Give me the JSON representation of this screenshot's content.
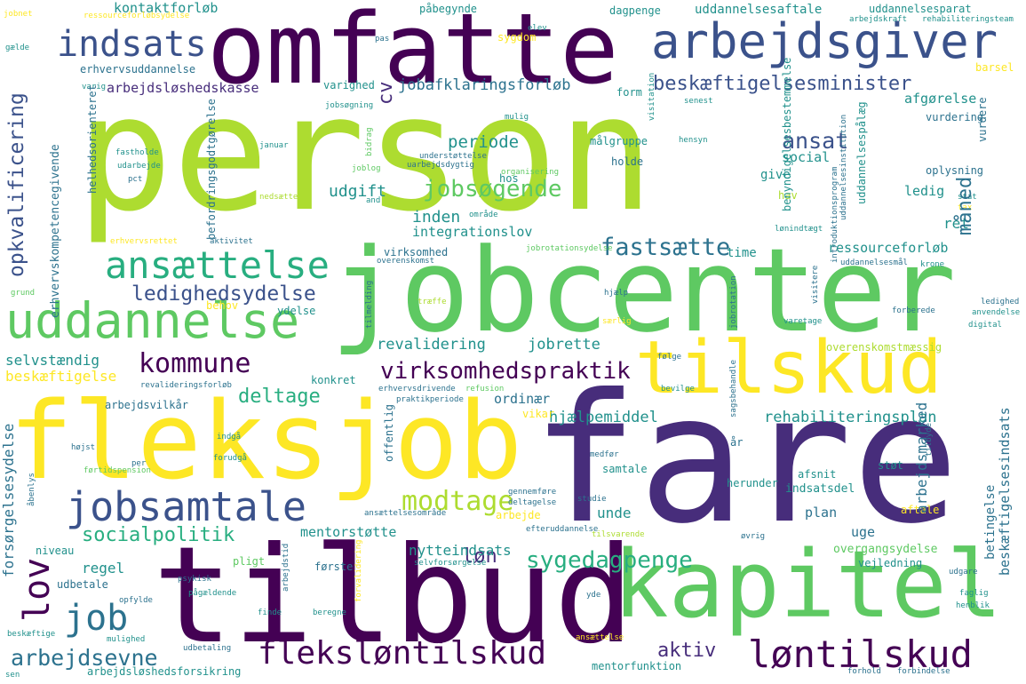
{
  "palette": {
    "dark_purple": "#440154",
    "purple": "#472d7b",
    "indigo": "#3b528b",
    "blue": "#2c728e",
    "teal": "#21918c",
    "sea_green": "#28ae80",
    "green": "#5ec962",
    "lime": "#addc30",
    "yellow": "#fde725"
  },
  "words": {
    "person": "person",
    "fare": "fare",
    "tilbud": "tilbud",
    "omfatte": "omfatte",
    "jobcenter": "jobcenter",
    "fleksjob": "fleksjob",
    "kapitel": "kapitel",
    "tilskud": "tilskud",
    "arbejdsgiver": "arbejdsgiver",
    "uddannelse": "uddannelse",
    "ansaettelse": "ansættelse",
    "jobsamtale": "jobsamtale",
    "indsats": "indsats",
    "kommune": "kommune",
    "lov": "lov",
    "job": "job",
    "flekslontilskud": "fleksløntilskud",
    "lontilskud": "løntilskud",
    "ledighedsydelse": "ledighedsydelse",
    "opkvalificering": "opkvalificering",
    "jobsogende": "jobsøgende",
    "fastsaette": "fastsætte",
    "virksomhedspraktik": "virksomhedspraktik",
    "modtage": "modtage",
    "socialpolitik": "socialpolitik",
    "sygedagpenge": "sygedagpenge",
    "arbejdsevne": "arbejdsevne",
    "beskaeftigelsesminister": "beskæftigelsesminister",
    "ansat": "ansat",
    "maaned": "måned",
    "deltage": "deltage",
    "cv": "cv",
    "arbejdsloshedskasse": "arbejdsløshedskasse",
    "kontaktforlob": "kontaktforløb",
    "jobafklaringsforlob": "jobafklaringsforløb",
    "erhvervskompetencegivende": "erhvervskompetencegivende",
    "erhvervsuddannelse": "erhvervsuddannelse",
    "periode": "periode",
    "udgift": "udgift",
    "inden": "inden",
    "integrationslov": "integrationslov",
    "revalidering": "revalidering",
    "jobrette": "jobrette",
    "selvstaendig": "selvstændig",
    "beskaeftigelse": "beskæftigelse",
    "ordinaer": "ordinær",
    "hjaelpemiddel": "hjælpemiddel",
    "rehabiliteringsplan": "rehabiliteringsplan",
    "arbejdsmarked": "arbejdsmarked",
    "beskaeftigelsesindsats": "beskæftigelsesindsats",
    "forsorgelsesydelse": "forsørgelsesydelse",
    "aktiv": "aktiv",
    "lon": "løn",
    "mentorstotte": "mentorstøtte",
    "nytteindsats": "nytteindsats",
    "regel": "regel",
    "unde": "unde",
    "plan": "plan",
    "uge": "uge",
    "betingelse": "betingelse",
    "ressourceforlob": "ressourceforløb",
    "ledig": "ledig",
    "ret": "ret",
    "social": "social",
    "oplysning": "oplysning",
    "afgorelse": "afgørelse",
    "vurdering": "vurdering",
    "uddannelsesaftale": "uddannelsesaftale",
    "uddannelsesparat": "uddannelsesparat",
    "dagpenge": "dagpenge",
    "pabegynde": "påbegynde",
    "sygdom": "sygdom",
    "barsel": "barsel",
    "give": "give",
    "holde": "holde",
    "hav": "hav",
    "time": "time",
    "virksomhed": "virksomhed",
    "behov": "behov",
    "ydelse": "ydelse",
    "konkret": "konkret",
    "arbejdsvilkaar": "arbejdsvilkår",
    "vikar": "vikar",
    "aftale": "aftale",
    "samtale": "samtale",
    "indsatsdel": "indsatsdel",
    "afsnit": "afsnit",
    "stot": "støt",
    "overgangsydelse": "overgangsydelse",
    "vejledning": "vejledning",
    "overenskomstmaessig": "overenskomstmæssig",
    "pligt": "pligt",
    "udbetale": "udbetale",
    "niveau": "niveau",
    "arbejdsloshedsforsikring": "arbejdsløshedsforsikring",
    "mentorfunktion": "mentorfunktion",
    "arbejde": "arbejde",
    "befordringsgodtgorelse": "befordringsgodtgørelse",
    "helhedsorienteret": "helhedsorienteret",
    "varighed": "varighed",
    "form": "form",
    "malgruppe": "målgruppe",
    "hos": "hos",
    "jobsogning": "jobsøgning",
    "uddannelsesinstitution": "uddannelsesinstitution",
    "uddannelsespaalaeg": "uddannelsespålæg",
    "benyndigelsesbestemmelse": "benyndigelsesbestemmelse",
    "introduktionsprogram": "introduktionsprogram",
    "rehabiliteringsteam": "rehabiliteringsteam",
    "arbejdskraft": "arbejdskraft",
    "revalideringsforlob": "revalideringsforløb",
    "erhvervsdrivende": "erhvervsdrivende",
    "praktikperiode": "praktikperiode",
    "refusion": "refusion",
    "overenskomst": "overenskomst",
    "jobrotationsydelse": "jobrotationsydelse",
    "aktivitet": "aktivitet",
    "erhvervsrettet": "erhvervsrettet",
    "uddannelsesmaal": "uddannelsesmål",
    "lonindtaegt": "lønindtægt",
    "tilmelding": "tilmelding",
    "jobrotation": "jobrotation",
    "ansaettelsesomraade": "ansættelsesområde",
    "efteruddannelse": "efteruddannelse",
    "tilsvarende": "tilsvarende",
    "selvforsorgelse": "selvforsørgelse",
    "fortidspension": "førtidspension",
    "forholdt": "forhold",
    "forbindelse": "forbindelse",
    "udgaaende": "udgare",
    "fastholde": "fastholde",
    "udarbejde": "udarbejde",
    "pct": "pct",
    "januar": "januar",
    "hensyn": "hensyn",
    "visitation": "visitation",
    "senest": "senest",
    "mulig": "mulig",
    "understottelse": "understøttelse",
    "uarbejdsdygtig": "uarbejdsdygtig",
    "joblog": "joblog",
    "organisering": "organisering",
    "nedsaette": "nedsætte",
    "and": "and",
    "omraade": "område",
    "stat": "stat",
    "tax": "tax",
    "krone": "krone",
    "grund": "grund",
    "traeffe": "træffe",
    "hjaelp": "hjælp",
    "visitere": "visitere",
    "ledighed": "ledighed",
    "anvendelse": "anvendelse",
    "digital": "digital",
    "forberede": "forberede",
    "saerlig": "særlig",
    "varetage": "varetage",
    "folge": "følge",
    "bevilge": "bevilge",
    "sagsbehandle": "sagsbehandle",
    "tilbyde": "tilbyde",
    "aar": "år",
    "herunder": "herunder",
    "medfor": "medfør",
    "studie": "studie",
    "gennemfore": "gennemføre",
    "deltagelse": "deltagelse",
    "ovrig": "øvrig",
    "faglig": "faglig",
    "henblik": "henblik",
    "yde": "yde",
    "forste": "første",
    "beregne": "beregne",
    "finde": "finde",
    "paagaeldende": "pågældende",
    "opfylde": "opfylde",
    "psykisk": "psykisk",
    "arbejdstid": "arbejdstid",
    "forvalidering": "forvalidering",
    "udbetaling": "udbetaling",
    "mulighed": "mulighed",
    "beskaeftige": "beskæftige",
    "sen": "sen",
    "aabenlys": "åbenlys",
    "hojst": "højst",
    "per": "per",
    "indga": "indgå",
    "offentlig": "offentlig",
    "forudgaa": "forudgå",
    "jobnet": "jobnet",
    "ressourceforlobsydelse": "ressourceforløbsydelse",
    "gaelde": "gælde",
    "varig": "varig",
    "elev": "elev",
    "pas": "pas",
    "bidrag": "bidrag",
    "visitation2": "visitation",
    "vurdere": "vurdere",
    "ansaettelse2": "ansættelse"
  }
}
